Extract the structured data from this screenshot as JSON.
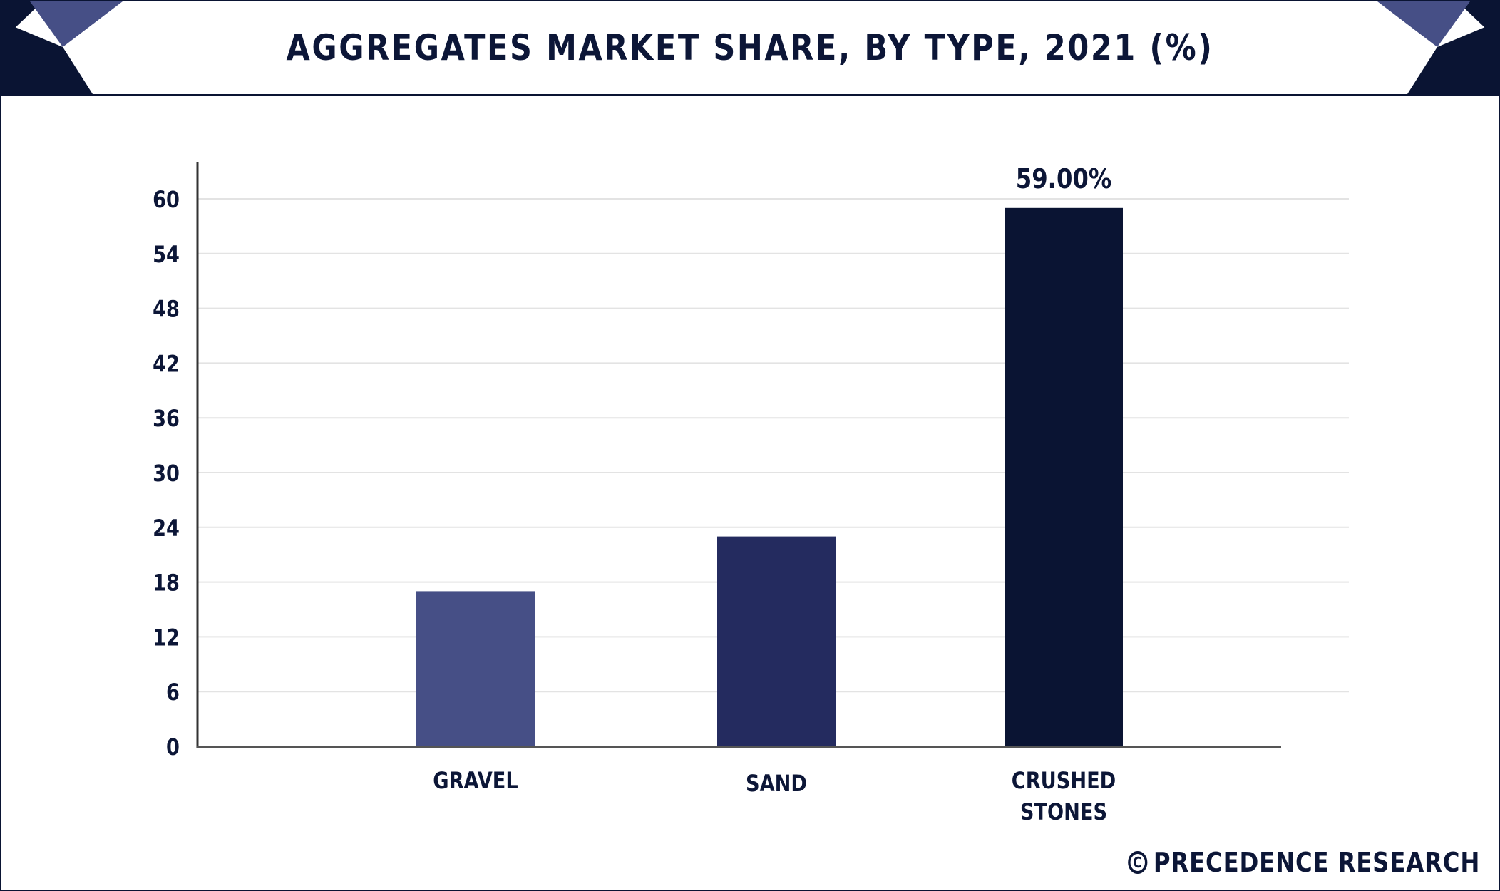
{
  "header": {
    "title": "AGGREGATES MARKET SHARE, BY TYPE, 2021 (%)"
  },
  "chart_data": {
    "type": "bar",
    "title": "AGGREGATES MARKET SHARE, BY TYPE, 2021 (%)",
    "xlabel": "",
    "ylabel": "",
    "categories": [
      "GRAVEL",
      "SAND",
      "CRUSHED STONES"
    ],
    "category_lines": [
      [
        "GRAVEL"
      ],
      [
        "SAND"
      ],
      [
        "CRUSHED",
        "STONES"
      ]
    ],
    "values": [
      17,
      23,
      59
    ],
    "data_labels": [
      "",
      "",
      "59.00%"
    ],
    "colors": [
      "#464f86",
      "#242b5f",
      "#0a1433"
    ],
    "ylim": [
      0,
      60
    ],
    "yticks": [
      0,
      6,
      12,
      18,
      24,
      30,
      36,
      42,
      48,
      54,
      60
    ],
    "grid": true,
    "legend": "none"
  },
  "brand": {
    "icon": "copyright-icon",
    "icon_glyph": "C",
    "text": "PRECEDENCE RESEARCH"
  },
  "colors": {
    "navy": "#0a1433",
    "accent": "#464f86",
    "grid": "#e3e3e3"
  }
}
